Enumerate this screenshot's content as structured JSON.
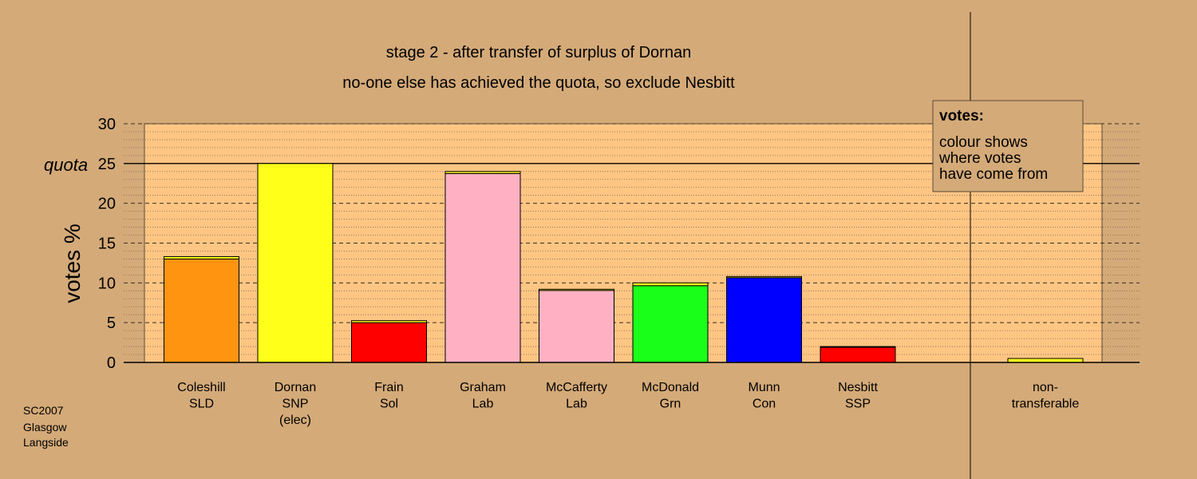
{
  "chart_data": {
    "type": "bar",
    "title": "stage 2 - after transfer of surplus of Dornan",
    "subtitle": "no-one else has achieved the quota, so exclude Nesbitt",
    "ylabel": "votes %",
    "ylim": [
      0,
      30
    ],
    "yticks": [
      "0",
      "5",
      "10",
      "15",
      "20",
      "25",
      "30"
    ],
    "quota_value": 25,
    "quota_label": "quota",
    "categories": [
      [
        "Coleshill",
        "SLD"
      ],
      [
        "Dornan",
        "SNP",
        "(elec)"
      ],
      [
        "Frain",
        "Sol"
      ],
      [
        "Graham",
        "Lab"
      ],
      [
        "McCafferty",
        "Lab"
      ],
      [
        "McDonald",
        "Grn"
      ],
      [
        "Munn",
        "Con"
      ],
      [
        "Nesbitt",
        "SSP"
      ],
      [
        "non-",
        "transferable"
      ]
    ],
    "bars": [
      {
        "segments": [
          {
            "value": 13.0,
            "color": "#FF9410"
          },
          {
            "value": 0.3,
            "color": "#FFFF19"
          }
        ]
      },
      {
        "segments": [
          {
            "value": 25.0,
            "color": "#FFFF19"
          }
        ]
      },
      {
        "segments": [
          {
            "value": 5.0,
            "color": "#FF0000"
          },
          {
            "value": 0.25,
            "color": "#FFFF19"
          }
        ]
      },
      {
        "segments": [
          {
            "value": 23.75,
            "color": "#FFB1C3"
          },
          {
            "value": 0.25,
            "color": "#FFFF19"
          }
        ]
      },
      {
        "segments": [
          {
            "value": 9.05,
            "color": "#FFB1C3"
          },
          {
            "value": 0.15,
            "color": "#FFFF19"
          }
        ]
      },
      {
        "segments": [
          {
            "value": 9.65,
            "color": "#19FF19"
          },
          {
            "value": 0.35,
            "color": "#FFFF19"
          }
        ]
      },
      {
        "segments": [
          {
            "value": 10.65,
            "color": "#0000FF"
          },
          {
            "value": 0.15,
            "color": "#FFFF19"
          }
        ]
      },
      {
        "segments": [
          {
            "value": 1.9,
            "color": "#FF0000"
          },
          {
            "value": 0.1,
            "color": "#FFFF19"
          }
        ]
      },
      {
        "segments": [
          {
            "value": 0.5,
            "color": "#FFFF19"
          }
        ]
      }
    ],
    "grid": true,
    "legend": {
      "title": "votes:",
      "lines": [
        "colour shows",
        "where votes",
        "have come from"
      ],
      "placement": "top-right"
    },
    "colors": {
      "background": "#D4AA78",
      "plot_area": "#FFC583"
    }
  },
  "footnote": [
    "SC2007",
    "Glasgow",
    "Langside"
  ]
}
